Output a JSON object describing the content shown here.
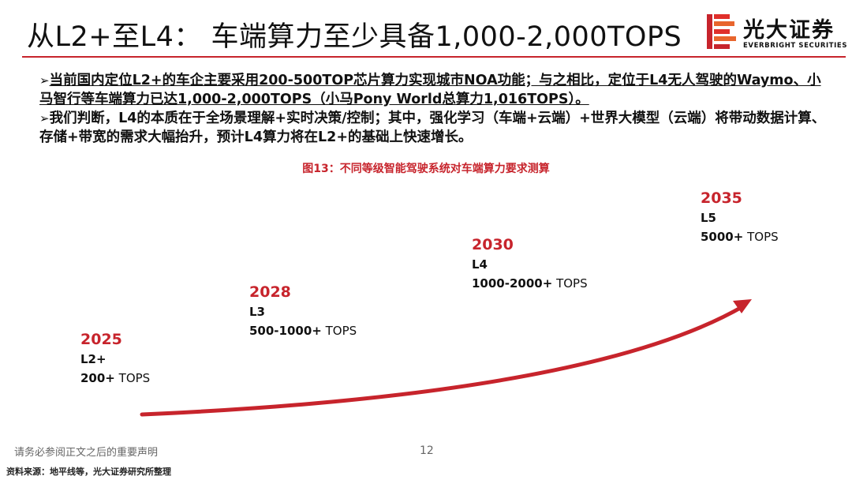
{
  "header": {
    "title": "从L2+至L4： 车端算力至少具备1,000-2,000TOPS"
  },
  "logo": {
    "name_cn": "光大证券",
    "name_en": "EVERBRIGHT SECURITIES",
    "icon": "everbright-logo-icon"
  },
  "bullets": [
    {
      "marker": "➢",
      "text": "当前国内定位L2+的车企主要采用200-500TOP芯片算力实现城市NOA功能；与之相比，定位于L4无人驾驶的Waymo、小马智行等车端算力已达1,000-2,000TOPS（小马Pony World总算力1,016TOPS）。"
    },
    {
      "marker": "➢",
      "text": "我们判断，L4的本质在于全场景理解+实时决策/控制；其中，强化学习（车端+云端）+世界大模型（云端）将带动数据计算、存储+带宽的需求大幅抬升，预计L4算力将在L2+的基础上快速增长。"
    }
  ],
  "figure": {
    "caption": "图13：不同等级智能驾驶系统对车端算力要求测算"
  },
  "milestones": [
    {
      "year": "2025",
      "level": "L2+",
      "tops_value": "200+",
      "tops_unit": " TOPS"
    },
    {
      "year": "2028",
      "level": "L3",
      "tops_value": "500-1000+",
      "tops_unit": " TOPS"
    },
    {
      "year": "2030",
      "level": "L4",
      "tops_value": "1000-2000+",
      "tops_unit": " TOPS"
    },
    {
      "year": "2035",
      "level": "L5",
      "tops_value": "5000+",
      "tops_unit": " TOPS"
    }
  ],
  "footer": {
    "disclaimer": "请务必参阅正文之后的重要声明",
    "page_number": "12",
    "source": "资料来源：地平线等，光大证券研究所整理"
  },
  "colors": {
    "accent_red": "#c7242c",
    "logo_orange": "#e8652d"
  }
}
